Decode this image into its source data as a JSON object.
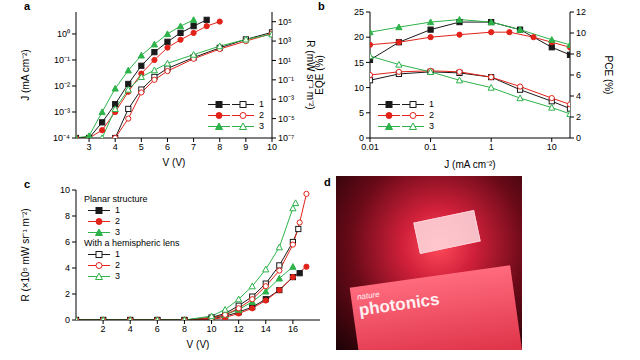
{
  "chart_data": [
    {
      "type": "line",
      "title": "a",
      "x_label": "V (V)",
      "y_label": "J (mA cm⁻²)",
      "y2_label": "R (mW sr⁻¹ m⁻²)",
      "log": "y",
      "legend": "lower right",
      "xlim": [
        2.5,
        10
      ],
      "xticks": [
        3,
        4,
        5,
        6,
        7,
        8,
        9,
        10
      ],
      "ylim": [
        0.0001,
        7
      ],
      "yticks": [
        {
          "value": 0.0001,
          "label": "10⁻⁴"
        },
        {
          "value": 0.001,
          "label": "10⁻³"
        },
        {
          "value": 0.01,
          "label": "10⁻²"
        },
        {
          "value": 0.1,
          "label": "10⁻¹"
        },
        {
          "value": 1,
          "label": "10⁰"
        }
      ],
      "y2lim": [
        1e-07,
        1000000
      ],
      "y2ticks": [
        {
          "value": 1e-07,
          "label": "10⁻⁷"
        },
        {
          "value": 1e-05,
          "label": "10⁻⁵"
        },
        {
          "value": 0.001,
          "label": "10⁻³"
        },
        {
          "value": 0.1,
          "label": "10⁻¹"
        },
        {
          "value": 10,
          "label": "10¹"
        },
        {
          "value": 1000,
          "label": "10³"
        },
        {
          "value": 100000,
          "label": "10⁵"
        }
      ],
      "series": [
        {
          "name": "1",
          "color": "#1a1a1a",
          "marker": "square",
          "x": [
            2.5,
            3,
            3.5,
            4,
            4.5,
            5,
            5.5,
            6,
            6.5,
            7,
            7.5
          ],
          "values": [
            0.0001,
            0.0001,
            0.0004,
            0.002,
            0.012,
            0.06,
            0.2,
            0.5,
            1.1,
            2,
            3.5
          ]
        },
        {
          "name": "2",
          "color": "#e2231a",
          "marker": "circle",
          "x": [
            2.5,
            3,
            3.5,
            4,
            4.5,
            5,
            5.5,
            6,
            6.5,
            7,
            7.5,
            8
          ],
          "values": [
            0.0001,
            0.0001,
            0.0002,
            0.001,
            0.006,
            0.03,
            0.1,
            0.3,
            0.6,
            1.1,
            2,
            3
          ]
        },
        {
          "name": "3",
          "color": "#2db34a",
          "marker": "triangle",
          "x": [
            2.5,
            3,
            3.5,
            4,
            4.5,
            5,
            5.5,
            6,
            6.5,
            7
          ],
          "values": [
            0.0001,
            0.00012,
            0.001,
            0.008,
            0.04,
            0.15,
            0.4,
            1,
            2,
            3.5
          ]
        },
        {
          "name": "1",
          "color": "#1a1a1a",
          "marker": "open_square",
          "axis": "y2",
          "x": [
            4,
            4.5,
            5,
            5.5,
            6,
            7,
            8,
            9,
            10
          ],
          "values": [
            1e-07,
            0.0001,
            0.01,
            0.2,
            1.5,
            20,
            200,
            1500,
            8000
          ]
        },
        {
          "name": "2",
          "color": "#e2231a",
          "marker": "open_circle",
          "axis": "y2",
          "x": [
            4,
            4.5,
            5,
            5.5,
            6,
            7,
            8,
            9,
            10
          ],
          "values": [
            1e-07,
            1e-05,
            0.005,
            0.1,
            0.8,
            15,
            150,
            1000,
            6000
          ]
        },
        {
          "name": "3",
          "color": "#2db34a",
          "marker": "open_triangle",
          "axis": "y2",
          "x": [
            3.5,
            4,
            4.5,
            5,
            5.5,
            6,
            7,
            8,
            9,
            10
          ],
          "values": [
            1e-07,
            0.0001,
            0.01,
            0.2,
            1,
            5,
            40,
            300,
            1500,
            5000
          ]
        }
      ]
    },
    {
      "type": "line",
      "title": "b",
      "x_label": "J (mA cm⁻²)",
      "y_label": "EQE (%)",
      "y2_label": "PCE (%)",
      "log": "x",
      "legend": "lower left",
      "xlim": [
        0.01,
        20
      ],
      "xticks": [
        0.01,
        0.1,
        1,
        10
      ],
      "ylim": [
        0,
        25
      ],
      "yticks": [
        0,
        5,
        10,
        15,
        20,
        25
      ],
      "y2lim": [
        0,
        12
      ],
      "y2ticks": [
        0,
        2,
        4,
        6,
        8,
        10,
        12
      ],
      "series": [
        {
          "name": "1",
          "color": "#1a1a1a",
          "marker": "square",
          "x": [
            0.01,
            0.03,
            0.1,
            0.3,
            1,
            3,
            10,
            20
          ],
          "values": [
            15.5,
            19,
            21.5,
            23,
            23,
            21.5,
            18,
            16.5
          ]
        },
        {
          "name": "2",
          "color": "#e2231a",
          "marker": "circle",
          "x": [
            0.01,
            0.03,
            0.1,
            0.3,
            1,
            2,
            5,
            10,
            20
          ],
          "values": [
            18.5,
            19,
            20,
            20.5,
            21,
            21,
            20,
            19,
            18
          ]
        },
        {
          "name": "3",
          "color": "#2db34a",
          "marker": "triangle",
          "x": [
            0.01,
            0.03,
            0.1,
            0.3,
            1,
            3,
            10,
            20
          ],
          "values": [
            21,
            22,
            23,
            23.5,
            23,
            21.5,
            19.5,
            18.5
          ]
        },
        {
          "name": "1",
          "color": "#1a1a1a",
          "marker": "open_square",
          "axis": "y2",
          "x": [
            0.01,
            0.03,
            0.1,
            0.3,
            1,
            3,
            10,
            20
          ],
          "values": [
            5.5,
            6.1,
            6.3,
            6.2,
            5.8,
            4.6,
            3.5,
            2.8
          ]
        },
        {
          "name": "2",
          "color": "#e2231a",
          "marker": "open_circle",
          "axis": "y2",
          "x": [
            0.01,
            0.03,
            0.1,
            0.3,
            1,
            3,
            10,
            20
          ],
          "values": [
            6,
            6.3,
            6.4,
            6.3,
            5.8,
            4.9,
            3.8,
            3.2
          ]
        },
        {
          "name": "3",
          "color": "#2db34a",
          "marker": "open_triangle",
          "axis": "y2",
          "x": [
            0.01,
            0.03,
            0.1,
            0.3,
            1,
            3,
            10,
            20
          ],
          "values": [
            7.8,
            7,
            6.3,
            5.5,
            4.8,
            3.8,
            2.9,
            2.3
          ]
        }
      ]
    },
    {
      "type": "line",
      "title": "c",
      "x_label": "V (V)",
      "y_label": "R (×10⁵ mW sr⁻¹ m⁻²)",
      "legend": "upper left",
      "annotations": [
        "Planar structure",
        "With a hemispheric lens"
      ],
      "xlim": [
        0,
        18
      ],
      "xticks": [
        2,
        4,
        6,
        8,
        10,
        12,
        14,
        16
      ],
      "ylim": [
        0,
        10
      ],
      "yticks": [
        0,
        2,
        4,
        6,
        8,
        10
      ],
      "series": [
        {
          "name": "1",
          "color": "#1a1a1a",
          "marker": "square",
          "x": [
            0,
            2,
            4,
            6,
            8,
            10,
            11,
            12,
            13,
            14,
            15,
            16,
            16.5
          ],
          "values": [
            0,
            0,
            0,
            0,
            0,
            0.1,
            0.3,
            0.6,
            1,
            1.6,
            2.3,
            3.3,
            3.6
          ]
        },
        {
          "name": "2",
          "color": "#e2231a",
          "marker": "circle",
          "x": [
            0,
            2,
            4,
            6,
            8,
            10,
            11,
            12,
            13,
            14,
            15,
            16,
            17
          ],
          "values": [
            0,
            0,
            0,
            0,
            0,
            0.05,
            0.2,
            0.5,
            0.9,
            1.5,
            2.3,
            3.3,
            4.1
          ]
        },
        {
          "name": "3",
          "color": "#2db34a",
          "marker": "triangle",
          "x": [
            0,
            2,
            4,
            6,
            8,
            10,
            11,
            12,
            13,
            14,
            15,
            16
          ],
          "values": [
            0,
            0,
            0,
            0,
            0,
            0.15,
            0.4,
            0.8,
            1.4,
            2.2,
            3.2,
            4.1
          ]
        },
        {
          "name": "1",
          "color": "#1a1a1a",
          "marker": "open_square",
          "x": [
            0,
            2,
            4,
            6,
            8,
            10,
            11,
            12,
            13,
            14,
            15,
            16,
            16.4
          ],
          "values": [
            0,
            0,
            0,
            0,
            0,
            0.2,
            0.5,
            1.1,
            1.8,
            2.8,
            4.2,
            6,
            7
          ]
        },
        {
          "name": "2",
          "color": "#e2231a",
          "marker": "open_circle",
          "x": [
            0,
            2,
            4,
            6,
            8,
            10,
            11,
            12,
            13,
            14,
            15,
            16,
            16.5,
            17
          ],
          "values": [
            0,
            0,
            0,
            0,
            0,
            0.15,
            0.4,
            0.9,
            1.6,
            2.6,
            3.8,
            5.8,
            7.5,
            9.7
          ]
        },
        {
          "name": "3",
          "color": "#2db34a",
          "marker": "open_triangle",
          "x": [
            0,
            2,
            4,
            6,
            8,
            10,
            11,
            12,
            13,
            14,
            15,
            16,
            16.2
          ],
          "values": [
            0,
            0,
            0,
            0,
            0,
            0.3,
            0.8,
            1.6,
            2.6,
            3.9,
            5.6,
            8.6,
            9
          ]
        }
      ]
    },
    {
      "type": "image",
      "title": "d",
      "annotations": [
        "nature",
        "photonics"
      ]
    }
  ]
}
